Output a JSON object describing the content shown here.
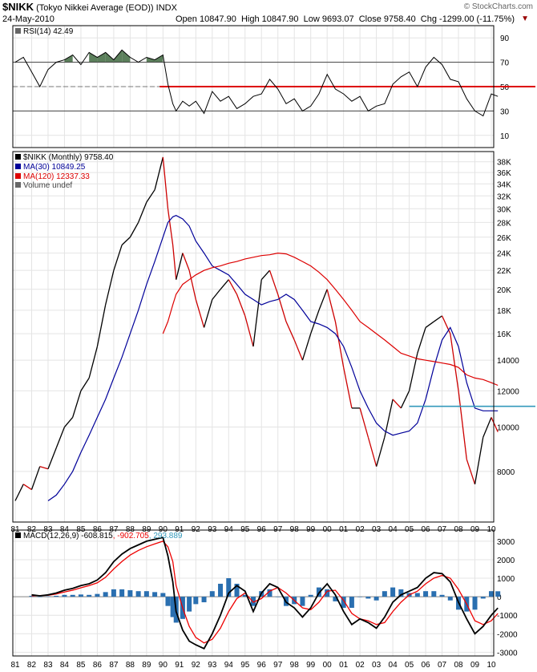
{
  "header": {
    "symbol": "$NIKK",
    "name": "(Tokyo Nikkei Average (EOD))",
    "exchange": "INDX",
    "date": "24-May-2010",
    "ohlc_text": "Open 10847.90  High 10847.90  Low 9693.07  Close 9758.40  Chg -1299.00 (-11.75%)",
    "chg_arrow": "▼",
    "watermark": "© StockCharts.com"
  },
  "rsi_panel": {
    "legend": "RSI(14) 42.49",
    "ticks": [
      "90",
      "70",
      "50",
      "30",
      "10"
    ]
  },
  "price_panel": {
    "legend_price": "$NIKK (Monthly) 9758.40",
    "legend_ma30": "MA(30) 10849.25",
    "legend_ma120": "MA(120) 12337.33",
    "legend_volume": "Volume undef",
    "ticks": [
      "38K",
      "36K",
      "34K",
      "32K",
      "30K",
      "28K",
      "26K",
      "24K",
      "22K",
      "20K",
      "18K",
      "16K",
      "14000",
      "12000",
      "10000",
      "8000"
    ]
  },
  "macd_panel": {
    "legend_label": "MACD(12,26,9)",
    "legend_macd": "-608.815",
    "legend_signal": "-902.705",
    "legend_hist": "293.889",
    "ticks": [
      "3000",
      "2000",
      "1000",
      "0",
      "-1000",
      "-2000",
      "-3000"
    ]
  },
  "xaxis": {
    "labels": [
      "81",
      "82",
      "83",
      "84",
      "85",
      "86",
      "87",
      "88",
      "89",
      "90",
      "91",
      "92",
      "93",
      "94",
      "95",
      "96",
      "97",
      "98",
      "99",
      "00",
      "01",
      "02",
      "03",
      "04",
      "05",
      "06",
      "07",
      "08",
      "09",
      "10"
    ]
  },
  "colors": {
    "price_up": "#000000",
    "price_down": "#cc0000",
    "ma30": "#000099",
    "ma120": "#dd0000",
    "rsi_fill": "#5b7f5b",
    "rsi50_line": "#dd0000",
    "support_line": "#3399bb",
    "macd": "#000000",
    "signal": "#ee0000",
    "histogram": "#2a6fb0",
    "hist_label": "#3399bb",
    "grid": "#e4e4e4"
  },
  "chart_data": [
    {
      "type": "line",
      "title": "RSI(14)",
      "ylim": [
        0,
        100
      ],
      "x": [
        1981.0,
        1981.5,
        1982.0,
        1982.5,
        1983.0,
        1983.5,
        1984.0,
        1984.5,
        1985.0,
        1985.5,
        1986.0,
        1986.5,
        1987.0,
        1987.5,
        1988.0,
        1988.5,
        1989.0,
        1989.5,
        1990.0,
        1990.3,
        1990.6,
        1990.8,
        1991.2,
        1991.6,
        1992.0,
        1992.5,
        1993.0,
        1993.5,
        1994.0,
        1994.5,
        1995.0,
        1995.5,
        1996.0,
        1996.5,
        1997.0,
        1997.5,
        1998.0,
        1998.5,
        1999.0,
        1999.5,
        2000.0,
        2000.5,
        2001.0,
        2001.5,
        2002.0,
        2002.5,
        2003.0,
        2003.5,
        2004.0,
        2004.5,
        2005.0,
        2005.5,
        2006.0,
        2006.5,
        2007.0,
        2007.5,
        2008.0,
        2008.5,
        2009.0,
        2009.5,
        2010.0,
        2010.4
      ],
      "series": [
        {
          "values": [
            70,
            74,
            62,
            50,
            64,
            70,
            72,
            76,
            68,
            78,
            74,
            78,
            72,
            80,
            74,
            70,
            74,
            72,
            76,
            52,
            36,
            30,
            38,
            34,
            38,
            28,
            46,
            38,
            42,
            32,
            36,
            42,
            44,
            56,
            48,
            36,
            40,
            30,
            34,
            44,
            60,
            48,
            44,
            38,
            42,
            30,
            34,
            36,
            52,
            58,
            62,
            50,
            66,
            74,
            68,
            56,
            54,
            40,
            30,
            26,
            44,
            42
          ]
        }
      ],
      "reference_lines": [
        70,
        50,
        30
      ]
    },
    {
      "type": "line",
      "title": "$NIKK (Monthly)",
      "ylim": [
        6200,
        40000
      ],
      "x": [
        1981.0,
        1981.5,
        1982.0,
        1982.5,
        1983.0,
        1983.5,
        1984.0,
        1984.5,
        1985.0,
        1985.5,
        1986.0,
        1986.5,
        1987.0,
        1987.5,
        1988.0,
        1988.5,
        1989.0,
        1989.5,
        1990.0,
        1990.3,
        1990.6,
        1990.8,
        1991.2,
        1991.6,
        1992.0,
        1992.5,
        1993.0,
        1993.5,
        1994.0,
        1994.5,
        1995.0,
        1995.5,
        1996.0,
        1996.5,
        1997.0,
        1997.5,
        1998.0,
        1998.5,
        1999.0,
        1999.5,
        2000.0,
        2000.5,
        2001.0,
        2001.5,
        2002.0,
        2002.5,
        2003.0,
        2003.5,
        2004.0,
        2004.5,
        2005.0,
        2005.5,
        2006.0,
        2006.5,
        2007.0,
        2007.5,
        2008.0,
        2008.5,
        2009.0,
        2009.5,
        2010.0,
        2010.4
      ],
      "series": [
        {
          "name": "$NIKK",
          "values": [
            6900,
            7500,
            7300,
            8200,
            8100,
            9000,
            10000,
            10500,
            12000,
            12800,
            15000,
            18500,
            22000,
            25000,
            26000,
            28000,
            31000,
            33000,
            38900,
            30000,
            25000,
            21000,
            24000,
            22000,
            19000,
            16500,
            19000,
            20000,
            21000,
            19500,
            17500,
            15000,
            21000,
            22000,
            19500,
            17000,
            15500,
            14000,
            16000,
            18000,
            20000,
            17000,
            13500,
            11000,
            11000,
            9500,
            8200,
            9500,
            11500,
            11000,
            12000,
            14500,
            16500,
            17000,
            17500,
            16000,
            12000,
            8500,
            7500,
            9500,
            10500,
            9758
          ]
        },
        {
          "name": "MA(30)",
          "values": [
            null,
            null,
            null,
            null,
            6900,
            7100,
            7500,
            8000,
            8800,
            9600,
            10500,
            11500,
            12800,
            14200,
            16000,
            18000,
            20500,
            23000,
            26000,
            28000,
            28800,
            29000,
            28500,
            27500,
            25500,
            24000,
            22500,
            22000,
            21500,
            20500,
            19500,
            19000,
            18500,
            18800,
            19000,
            19500,
            19000,
            18000,
            17000,
            16800,
            16500,
            16000,
            15000,
            13500,
            12000,
            11000,
            10200,
            9800,
            9600,
            9700,
            9800,
            10200,
            11500,
            13500,
            15500,
            16500,
            15000,
            12500,
            11000,
            10849,
            10849,
            10849
          ]
        },
        {
          "name": "MA(120)",
          "values": [
            null,
            null,
            null,
            null,
            null,
            null,
            null,
            null,
            null,
            null,
            null,
            null,
            null,
            null,
            null,
            null,
            null,
            null,
            16000,
            17000,
            18500,
            19500,
            20500,
            21000,
            21500,
            22000,
            22300,
            22500,
            22800,
            23000,
            23300,
            23500,
            23700,
            23800,
            24000,
            23900,
            23500,
            23000,
            22500,
            21800,
            21000,
            20000,
            19000,
            18000,
            17000,
            16500,
            16000,
            15500,
            15000,
            14500,
            14300,
            14100,
            14000,
            13900,
            13800,
            13700,
            13500,
            13000,
            12800,
            12700,
            12500,
            12337
          ]
        }
      ],
      "reference_lines": [
        11100
      ]
    },
    {
      "type": "line",
      "title": "MACD(12,26,9)",
      "ylim": [
        -3200,
        3600
      ],
      "x": [
        1981.0,
        1981.5,
        1982.0,
        1982.5,
        1983.0,
        1983.5,
        1984.0,
        1984.5,
        1985.0,
        1985.5,
        1986.0,
        1986.5,
        1987.0,
        1987.5,
        1988.0,
        1988.5,
        1989.0,
        1989.5,
        1990.0,
        1990.3,
        1990.6,
        1990.8,
        1991.2,
        1991.6,
        1992.0,
        1992.5,
        1993.0,
        1993.5,
        1994.0,
        1994.5,
        1995.0,
        1995.5,
        1996.0,
        1996.5,
        1997.0,
        1997.5,
        1998.0,
        1998.5,
        1999.0,
        1999.5,
        2000.0,
        2000.5,
        2001.0,
        2001.5,
        2002.0,
        2002.5,
        2003.0,
        2003.5,
        2004.0,
        2004.5,
        2005.0,
        2005.5,
        2006.0,
        2006.5,
        2007.0,
        2007.5,
        2008.0,
        2008.5,
        2009.0,
        2009.5,
        2010.0,
        2010.4
      ],
      "series": [
        {
          "name": "MACD",
          "values": [
            null,
            null,
            100,
            50,
            100,
            200,
            350,
            450,
            600,
            700,
            900,
            1300,
            1900,
            2300,
            2600,
            2800,
            3000,
            3100,
            3200,
            2200,
            800,
            -800,
            -1800,
            -2400,
            -2600,
            -2800,
            -2000,
            -1000,
            200,
            600,
            300,
            -800,
            200,
            700,
            500,
            -300,
            -600,
            -1100,
            -600,
            200,
            700,
            100,
            -800,
            -1500,
            -1200,
            -1400,
            -1700,
            -1100,
            -300,
            100,
            300,
            500,
            1000,
            1300,
            1250,
            800,
            -300,
            -1200,
            -2000,
            -1600,
            -1000,
            -609
          ]
        },
        {
          "name": "Signal",
          "values": [
            null,
            null,
            50,
            60,
            80,
            150,
            250,
            350,
            480,
            600,
            750,
            1050,
            1500,
            1900,
            2250,
            2500,
            2700,
            2850,
            3000,
            2700,
            1900,
            600,
            -600,
            -1600,
            -2200,
            -2500,
            -2300,
            -1700,
            -800,
            -100,
            200,
            -300,
            -100,
            300,
            500,
            200,
            -200,
            -600,
            -700,
            -300,
            300,
            350,
            -200,
            -900,
            -1200,
            -1300,
            -1500,
            -1400,
            -800,
            -300,
            100,
            300,
            700,
            1000,
            1150,
            1000,
            400,
            -400,
            -1300,
            -1500,
            -1300,
            -903
          ]
        },
        {
          "name": "Histogram",
          "values": [
            null,
            null,
            50,
            -10,
            20,
            50,
            100,
            100,
            120,
            100,
            150,
            250,
            400,
            400,
            350,
            300,
            300,
            250,
            200,
            -500,
            -1100,
            -1400,
            -1200,
            -800,
            -400,
            -300,
            300,
            700,
            1000,
            700,
            100,
            -500,
            300,
            400,
            0,
            -500,
            -400,
            -500,
            100,
            500,
            400,
            -250,
            -600,
            -600,
            0,
            -100,
            -200,
            300,
            500,
            400,
            200,
            200,
            300,
            300,
            100,
            -200,
            -700,
            -800,
            -700,
            -100,
            300,
            294
          ]
        }
      ],
      "reference_lines": [
        0
      ]
    }
  ]
}
